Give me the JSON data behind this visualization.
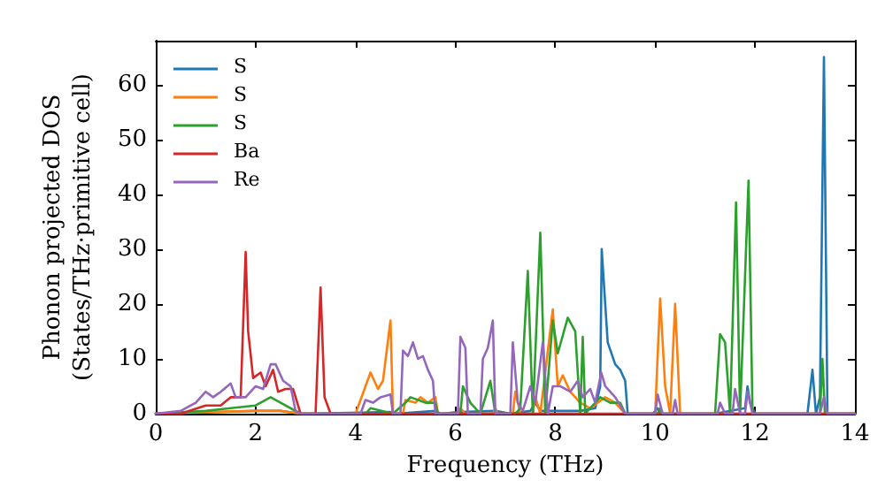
{
  "chart_data": {
    "type": "line",
    "xlabel": "Frequency (THz)",
    "ylabel": "Phonon projected DOS\n(States/THz·primitive cell)",
    "xlim": [
      0,
      14
    ],
    "ylim": [
      0,
      68
    ],
    "xticks": [
      0,
      2,
      4,
      6,
      8,
      10,
      12,
      14
    ],
    "yticks": [
      0,
      10,
      20,
      30,
      40,
      50,
      60
    ],
    "legend": "top left",
    "grid": false,
    "marker": "none",
    "line_style": "solid",
    "series": [
      {
        "name": "S",
        "color": "#1f77b4",
        "x": [
          0,
          1,
          2,
          2.5,
          2.9,
          3.0,
          4.1,
          4.7,
          4.8,
          5.6,
          5.7,
          6.1,
          6.8,
          7.1,
          7.5,
          7.6,
          7.7,
          7.9,
          8.2,
          8.5,
          8.8,
          8.9,
          8.93,
          9.0,
          9.05,
          9.2,
          9.3,
          9.4,
          9.45,
          9.95,
          10.05,
          10.1,
          10.5,
          11.2,
          11.8,
          11.85,
          11.9,
          12.0,
          13.05,
          13.15,
          13.22,
          13.3,
          13.38,
          13.45,
          14
        ],
        "values": [
          0,
          0.2,
          0.5,
          0.5,
          0,
          0,
          0.2,
          0.3,
          0,
          0.5,
          0,
          0.3,
          0.5,
          0,
          0.5,
          2,
          0.5,
          0.5,
          0.5,
          0.5,
          1,
          5,
          30,
          20,
          13,
          9,
          8,
          6,
          0,
          0,
          1,
          0,
          0,
          0,
          1,
          5,
          2,
          0,
          0,
          8,
          0,
          3,
          65,
          0,
          0
        ]
      },
      {
        "name": "S",
        "color": "#ff7f0e",
        "x": [
          0,
          1,
          2,
          2.5,
          2.9,
          4.0,
          4.2,
          4.3,
          4.45,
          4.55,
          4.7,
          4.75,
          4.95,
          5.0,
          5.2,
          5.3,
          5.45,
          5.6,
          5.65,
          6.05,
          6.1,
          6.2,
          6.75,
          6.8,
          6.85,
          7.15,
          7.2,
          7.3,
          7.55,
          7.6,
          7.7,
          7.95,
          8.05,
          8.15,
          8.3,
          8.5,
          8.7,
          9.0,
          9.2,
          9.4,
          10.0,
          10.1,
          10.2,
          10.3,
          10.4,
          10.5,
          14
        ],
        "values": [
          0,
          0.3,
          0.5,
          0.5,
          0,
          0,
          5,
          7.5,
          4.5,
          6,
          17,
          0,
          0,
          2.5,
          2,
          3,
          2,
          3,
          0,
          0,
          1,
          0,
          0,
          1,
          0,
          0,
          4,
          0,
          0,
          3,
          0,
          19,
          5,
          7,
          4,
          2,
          1,
          3,
          2,
          0,
          0,
          21,
          5,
          0,
          20,
          0,
          0
        ]
      },
      {
        "name": "S",
        "color": "#2ca02c",
        "x": [
          0,
          1,
          1.5,
          2,
          2.3,
          2.5,
          2.9,
          4.2,
          4.3,
          4.75,
          5.0,
          5.1,
          5.4,
          5.6,
          5.65,
          6.1,
          6.15,
          6.3,
          6.5,
          6.7,
          6.8,
          7.2,
          7.3,
          7.45,
          7.55,
          7.7,
          7.8,
          7.95,
          8.05,
          8.25,
          8.4,
          8.5,
          8.55,
          8.6,
          8.9,
          9.1,
          9.3,
          9.4,
          10.05,
          10.1,
          10.15,
          11.2,
          11.3,
          11.4,
          11.5,
          11.62,
          11.7,
          11.87,
          11.95,
          13.3,
          13.35,
          13.4,
          14
        ],
        "values": [
          0,
          0.5,
          1,
          1.5,
          3,
          2,
          0,
          0,
          1,
          0,
          2,
          3,
          2,
          2,
          0,
          0,
          5,
          2,
          0,
          6,
          0,
          0,
          1,
          26,
          0,
          33,
          0,
          17,
          11,
          17.5,
          15,
          0,
          14,
          0,
          3,
          2,
          2,
          0,
          0,
          1,
          0,
          0,
          14.5,
          13,
          0,
          38.5,
          0,
          42.5,
          0,
          0,
          10,
          0,
          0
        ]
      },
      {
        "name": "Ba",
        "color": "#d62728",
        "x": [
          0,
          0.5,
          1,
          1.3,
          1.5,
          1.7,
          1.8,
          1.85,
          1.95,
          2.1,
          2.2,
          2.35,
          2.45,
          2.6,
          2.75,
          2.9,
          3.2,
          3.3,
          3.38,
          3.5,
          14
        ],
        "values": [
          0,
          0,
          1.5,
          1.5,
          3,
          3,
          29.5,
          15,
          6.5,
          7.5,
          5,
          8,
          4,
          4.5,
          4.5,
          0,
          0,
          23,
          3,
          0,
          0
        ]
      },
      {
        "name": "Re",
        "color": "#9467bd",
        "x": [
          0,
          0.5,
          0.8,
          1.0,
          1.15,
          1.3,
          1.5,
          1.6,
          1.8,
          2.0,
          2.15,
          2.3,
          2.4,
          2.55,
          2.7,
          2.8,
          2.9,
          4.1,
          4.2,
          4.35,
          4.5,
          4.7,
          4.75,
          4.9,
          4.95,
          5.05,
          5.15,
          5.25,
          5.35,
          5.45,
          5.55,
          5.6,
          6.05,
          6.1,
          6.2,
          6.25,
          6.5,
          6.55,
          6.65,
          6.75,
          6.8,
          7.1,
          7.15,
          7.25,
          7.35,
          7.5,
          7.6,
          7.75,
          7.85,
          7.95,
          8.1,
          8.3,
          8.45,
          8.55,
          8.7,
          8.8,
          8.92,
          9.0,
          9.2,
          9.4,
          10.0,
          10.05,
          10.15,
          10.35,
          10.4,
          10.45,
          11.25,
          11.3,
          11.4,
          11.55,
          11.6,
          11.7,
          11.8,
          11.85,
          11.95,
          13.3,
          13.38,
          13.45,
          14
        ],
        "values": [
          0,
          0.5,
          2,
          4,
          3,
          4,
          5.5,
          3,
          3,
          5,
          4.5,
          9,
          9,
          6,
          5,
          0.5,
          0,
          0,
          2.5,
          2,
          3,
          3.5,
          0,
          0,
          11.5,
          10.5,
          13,
          10,
          10.5,
          8,
          6,
          0,
          0,
          14,
          12,
          0,
          0,
          10,
          12,
          17,
          0,
          0,
          13,
          2,
          0.5,
          5,
          2,
          13,
          0,
          5,
          5,
          4,
          6,
          3,
          4.5,
          2,
          7.5,
          5,
          3,
          0,
          0,
          3.5,
          0,
          0,
          2.5,
          0,
          0,
          2,
          0,
          0,
          4.5,
          0,
          0,
          4,
          0,
          0,
          3,
          0,
          0
        ]
      }
    ]
  }
}
